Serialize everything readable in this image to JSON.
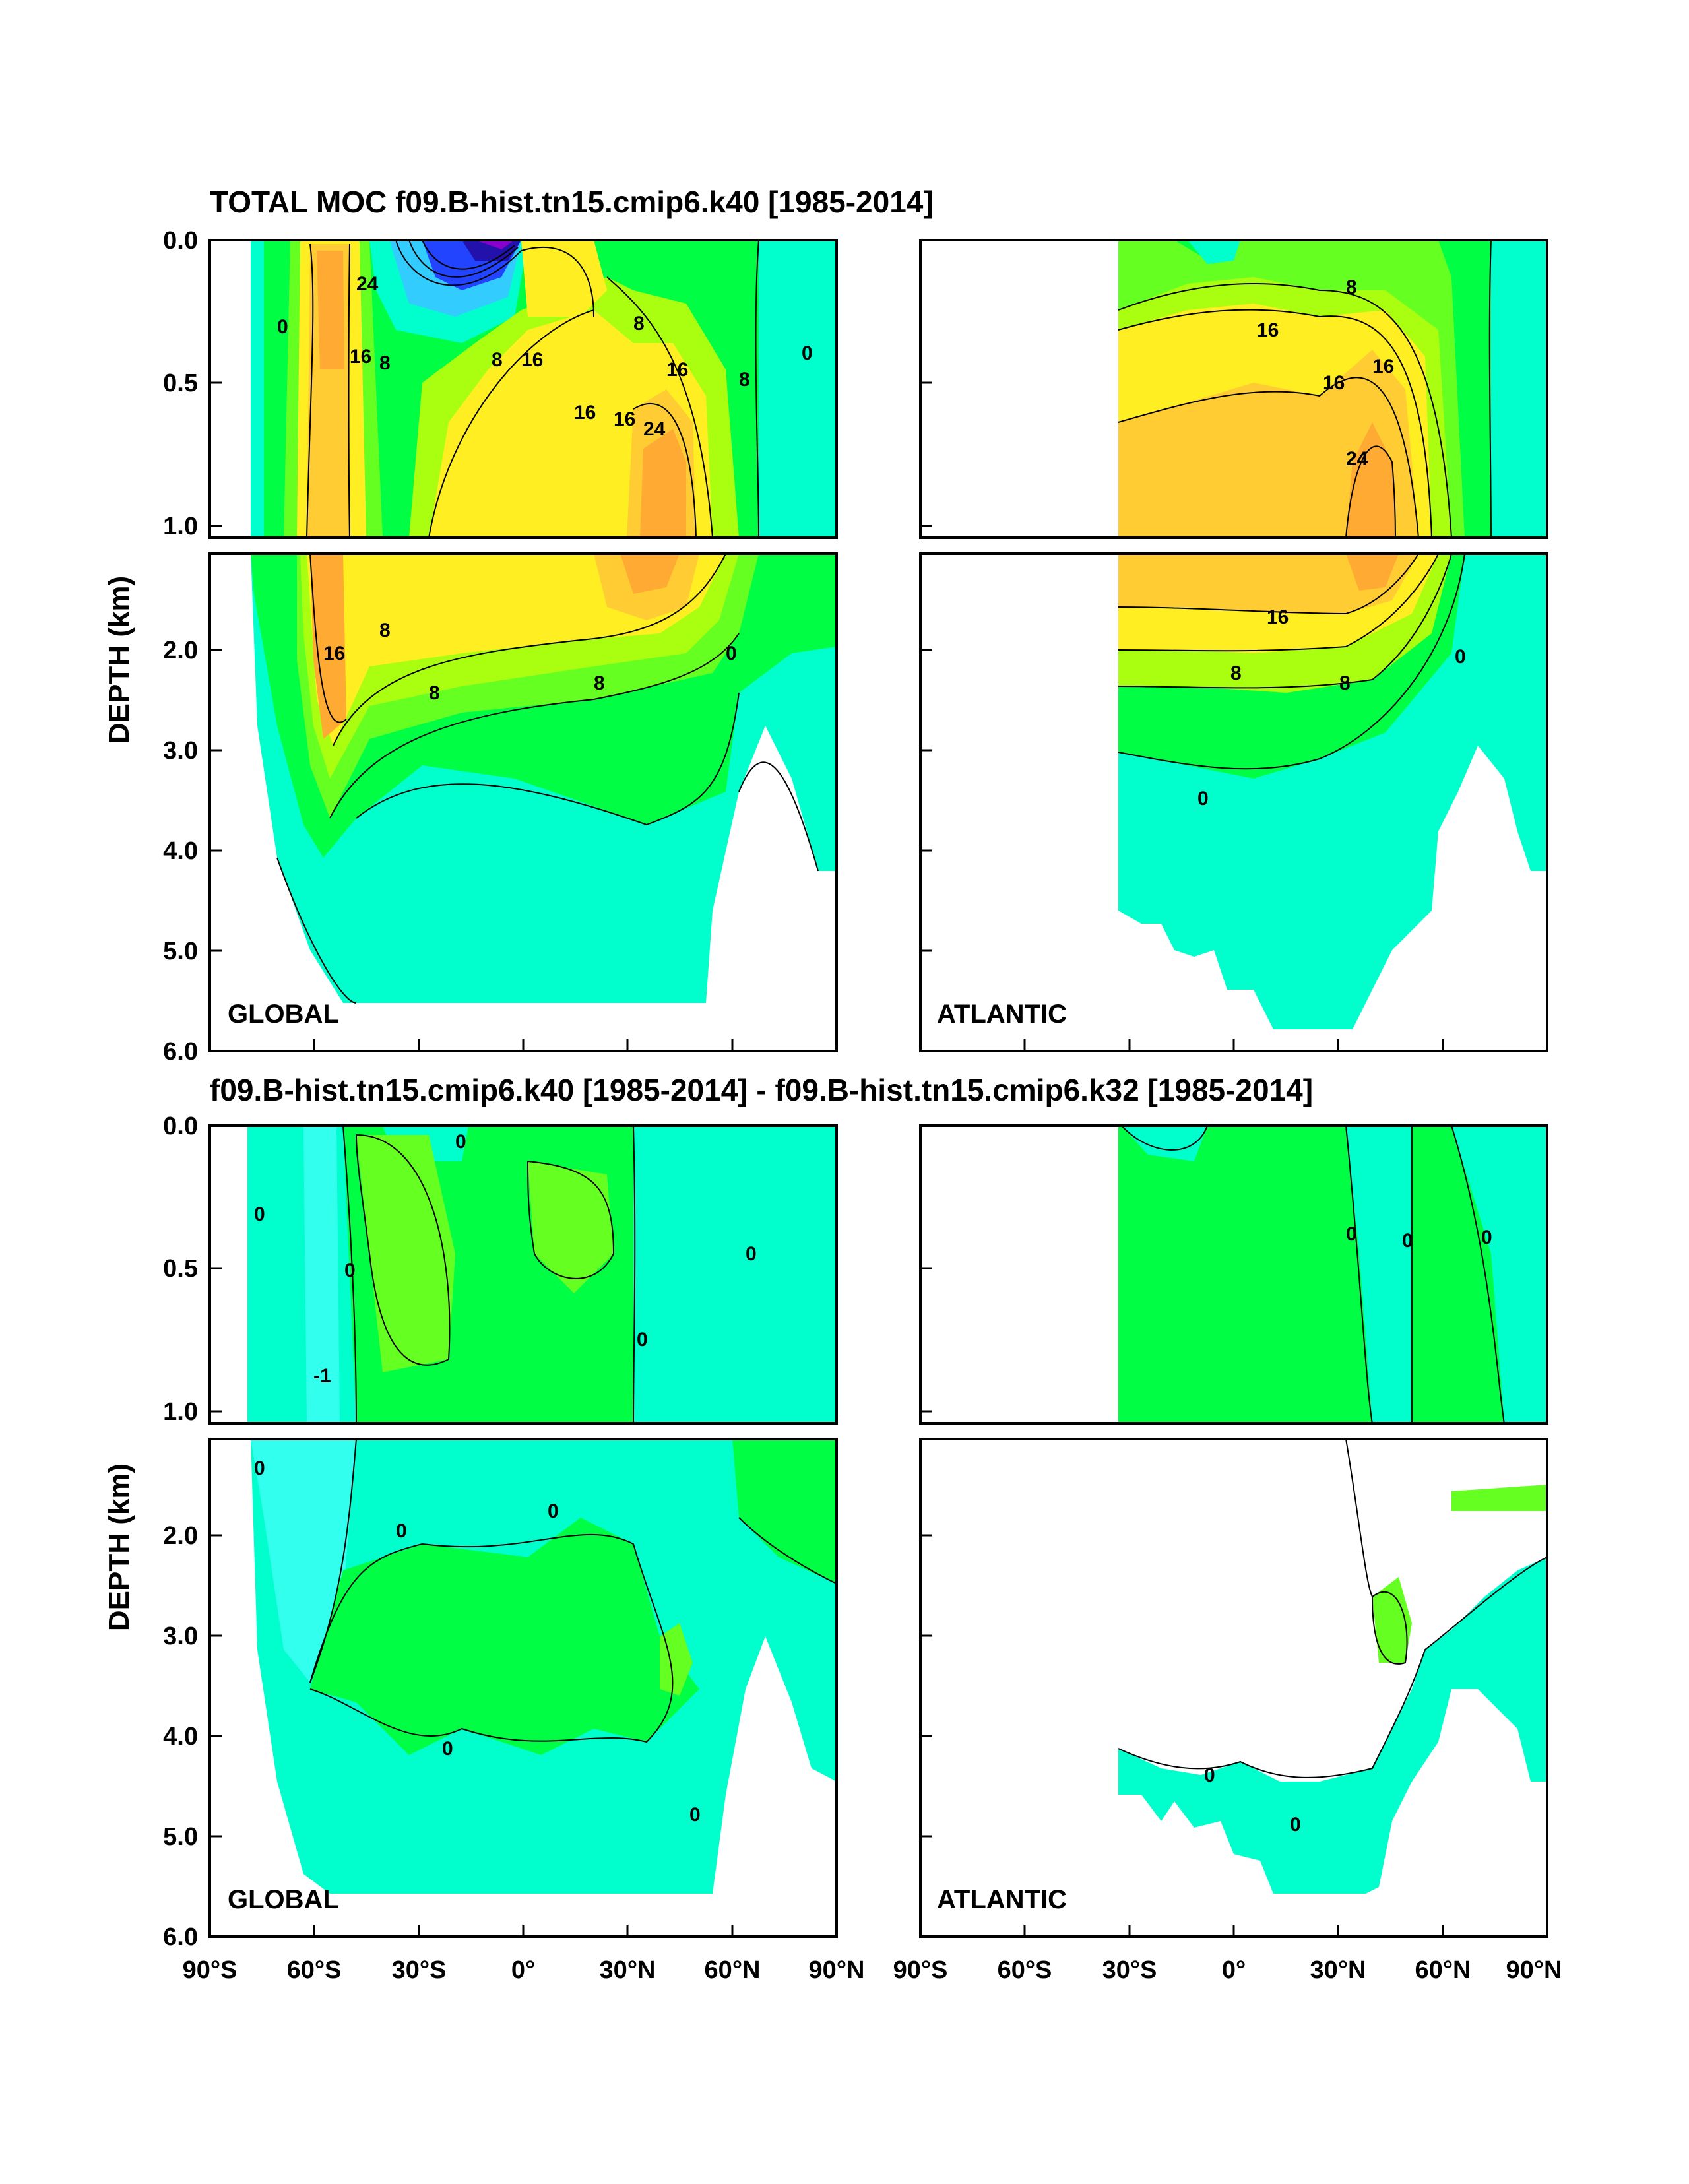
{
  "colors": {
    "cyan": "#00ffcc",
    "lightcyan": "#33ffee",
    "green": "#00ff44",
    "lightgreen": "#66ff22",
    "yellowgreen": "#aaff11",
    "yellow": "#ffee22",
    "lightorange": "#ffcc33",
    "orange": "#ffaa33",
    "blue": "#2244ff",
    "darkblue": "#2211aa",
    "violet": "#8800cc"
  },
  "chart_data": [
    {
      "id": "top-global",
      "type": "contour",
      "title": "TOTAL MOC f09.B-hist.tn15.cmip6.k40 [1985-2014]",
      "region_label": "GLOBAL",
      "ylabel": "DEPTH (km)",
      "xlim": [
        -90,
        90
      ],
      "ylim": [
        6.0,
        0.0
      ],
      "upper_yticks": [
        "0.0",
        "0.5",
        "1.0"
      ],
      "lower_yticks": [
        "2.0",
        "3.0",
        "4.0",
        "5.0",
        "6.0"
      ],
      "contour_labels": [
        "24",
        "16",
        "8",
        "0",
        "16",
        "8",
        "16",
        "16",
        "8",
        "24",
        "16",
        "8",
        "0",
        "16",
        "8",
        "8",
        "8",
        "0"
      ]
    },
    {
      "id": "top-atlantic",
      "type": "contour",
      "region_label": "ATLANTIC",
      "xlim": [
        -90,
        90
      ],
      "ylim": [
        6.0,
        0.0
      ],
      "contour_labels": [
        "16",
        "16",
        "16",
        "24",
        "8",
        "16",
        "8",
        "8",
        "0",
        "0"
      ]
    },
    {
      "id": "bottom-global",
      "type": "contour",
      "title": "f09.B-hist.tn15.cmip6.k40 [1985-2014] - f09.B-hist.tn15.cmip6.k32 [1985-2014]",
      "region_label": "GLOBAL",
      "ylabel": "DEPTH (km)",
      "xlim": [
        -90,
        90
      ],
      "ylim": [
        6.0,
        0.0
      ],
      "contour_labels": [
        "0",
        "0",
        "0",
        "-1",
        "0",
        "0",
        "0",
        "0",
        "0",
        "0",
        "0"
      ]
    },
    {
      "id": "bottom-atlantic",
      "type": "contour",
      "region_label": "ATLANTIC",
      "xlim": [
        -90,
        90
      ],
      "ylim": [
        6.0,
        0.0
      ],
      "contour_labels": [
        "0",
        "0",
        "0",
        "0",
        "0"
      ]
    }
  ],
  "xticks": [
    "90°S",
    "60°S",
    "30°S",
    "0°",
    "30°N",
    "60°N",
    "90°N"
  ],
  "xticks_right": [
    "90°S",
    "60°S",
    "30°S",
    "0°",
    "30°N",
    "60°N",
    "90°N"
  ]
}
